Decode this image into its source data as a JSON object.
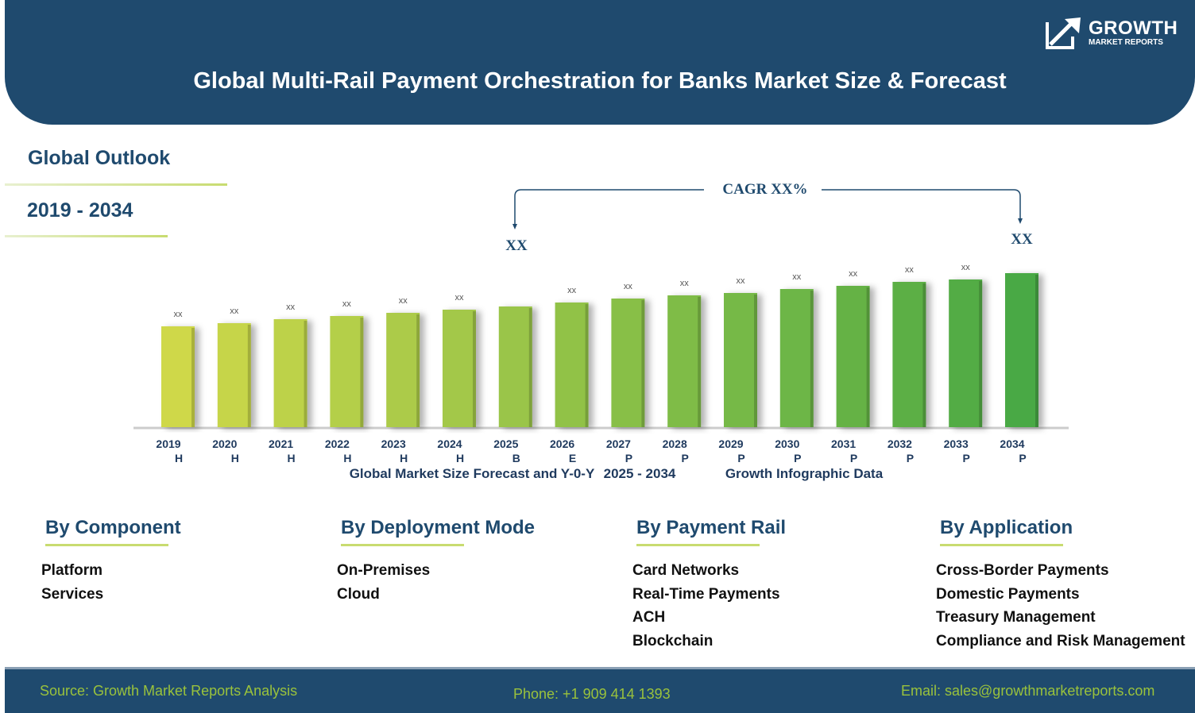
{
  "header": {
    "title": "Global Multi-Rail Payment Orchestration for Banks Market Size & Forecast",
    "logo_text": "GROWTH",
    "logo_subtext": "MARKET REPORTS"
  },
  "outlook": {
    "label": "Global Outlook",
    "years": "2019 - 2034"
  },
  "colors": {
    "brand": "#1f4a6e",
    "accent": "#9ac23c",
    "bar_start": "#cfd84a",
    "bar_end": "#4aa944"
  },
  "chart_data": {
    "type": "bar",
    "categories": [
      "2019",
      "2020",
      "2021",
      "2022",
      "2023",
      "2024",
      "2025",
      "2026",
      "2027",
      "2028",
      "2029",
      "2030",
      "2031",
      "2032",
      "2033",
      "2034"
    ],
    "period_codes": [
      "H",
      "H",
      "H",
      "H",
      "H",
      "H",
      "B",
      "E",
      "P",
      "P",
      "P",
      "P",
      "P",
      "P",
      "P",
      "P"
    ],
    "values": [
      127,
      131,
      136,
      140,
      144,
      148,
      152,
      157,
      162,
      166,
      169,
      174,
      178,
      183,
      186,
      194
    ],
    "data_labels": [
      "xx",
      "xx",
      "xx",
      "xx",
      "xx",
      "xx",
      "",
      "xx",
      "xx",
      "xx",
      "xx",
      "xx",
      "xx",
      "xx",
      "xx",
      ""
    ],
    "cagr_label": "CAGR XX%",
    "cagr_start_label": "XX",
    "cagr_end_label": "XX",
    "caption_parts": [
      "Global Market Size Forecast and Y-0-Y",
      "2025 - 2034",
      "Growth Infographic Data"
    ],
    "grid": false
  },
  "segments": [
    {
      "title": "By Component",
      "items": [
        "Platform",
        "Services"
      ]
    },
    {
      "title": "By Deployment Mode",
      "items": [
        "On-Premises",
        "Cloud"
      ]
    },
    {
      "title": "By Payment Rail",
      "items": [
        "Card Networks",
        "Real-Time Payments",
        "ACH",
        "Blockchain"
      ]
    },
    {
      "title": "By Application",
      "items": [
        "Cross-Border Payments",
        "Domestic Payments",
        "Treasury Management",
        "Compliance and Risk Management"
      ]
    }
  ],
  "footer": {
    "source": "Source: Growth Market Reports Analysis",
    "phone": "Phone: +1 909 414 1393",
    "email": "Email: sales@growthmarketreports.com"
  }
}
